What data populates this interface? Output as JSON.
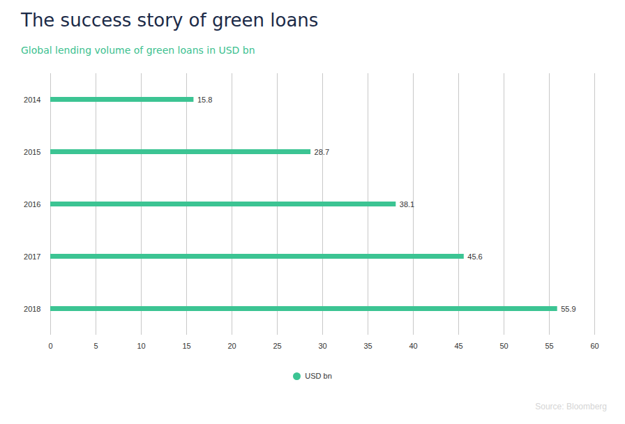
{
  "chart_data": {
    "type": "bar",
    "title": "The success story of green loans",
    "subtitle": "Global lending volume of green loans in USD bn",
    "categories": [
      "2014",
      "2015",
      "2016",
      "2017",
      "2018"
    ],
    "series": [
      {
        "name": "USD bn",
        "color": "#3cc493",
        "values": [
          15.8,
          28.7,
          38.1,
          45.6,
          55.9
        ]
      }
    ],
    "orientation": "horizontal",
    "xlim": [
      0,
      60
    ],
    "xticks": [
      0,
      5,
      10,
      15,
      20,
      25,
      30,
      35,
      40,
      45,
      50,
      55,
      60
    ],
    "grid": true,
    "data_labels": true,
    "legend": "bottom",
    "source": "Source: Bloomberg"
  }
}
